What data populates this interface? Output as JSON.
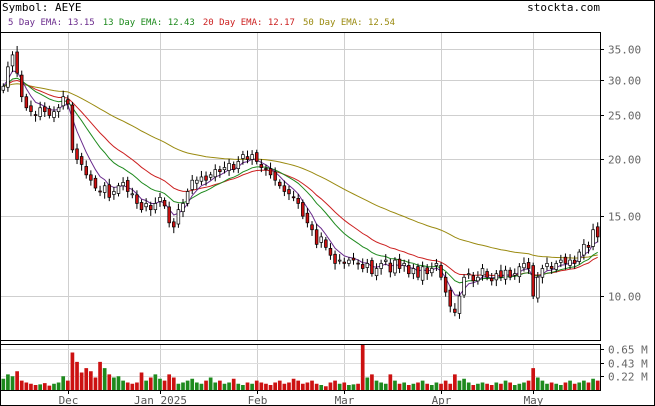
{
  "header": {
    "symbol_label": "Symbol:",
    "symbol": "AEYE",
    "site": "stockta.com"
  },
  "colors": {
    "ema5": "#6a2b8c",
    "ema13": "#1e8a1e",
    "ema20": "#cc2020",
    "ema50": "#9a8a10",
    "up": "#ffffff",
    "down": "#cc1111",
    "vol_up": "#1e8a1e",
    "vol_down": "#cc1111"
  },
  "legend": [
    {
      "label": "5 Day EMA:",
      "value": "13.15",
      "color_key": "ema5"
    },
    {
      "label": "13 Day EMA:",
      "value": "12.43",
      "color_key": "ema13"
    },
    {
      "label": "20 Day EMA:",
      "value": "12.17",
      "color_key": "ema20"
    },
    {
      "label": "50 Day EMA:",
      "value": "12.54",
      "color_key": "ema50"
    }
  ],
  "chart_data": {
    "type": "candlestick",
    "price_scale": "log",
    "ylim": [
      8,
      38
    ],
    "price_ticks": [
      "35.00",
      "30.00",
      "25.00",
      "20.00",
      "15.00",
      "10.00"
    ],
    "price_tick_values": [
      35,
      30,
      25,
      20,
      15,
      10
    ],
    "volume_ticks": [
      "0.65 M",
      "0.43 M",
      "0.22 M"
    ],
    "volume_tick_values": [
      0.65,
      0.43,
      0.22
    ],
    "volume_max": 0.72,
    "x_labels": [
      {
        "label": "Dec",
        "index": 14
      },
      {
        "label": "Jan 2025",
        "index": 34
      },
      {
        "label": "Feb",
        "index": 55
      },
      {
        "label": "Mar",
        "index": 74
      },
      {
        "label": "Apr",
        "index": 95
      },
      {
        "label": "May",
        "index": 115
      }
    ],
    "grid": true,
    "num_bars": 130,
    "close": [
      29.0,
      32.0,
      34.0,
      31.0,
      27.5,
      26.0,
      25.5,
      25.0,
      26.0,
      25.5,
      25.0,
      25.5,
      26.0,
      27.5,
      26.5,
      21.0,
      20.0,
      19.5,
      18.5,
      18.0,
      17.3,
      17.0,
      17.5,
      16.5,
      17.0,
      17.5,
      17.8,
      17.0,
      16.8,
      16.0,
      15.5,
      16.0,
      15.5,
      16.0,
      16.5,
      15.8,
      14.5,
      14.2,
      15.5,
      16.0,
      17.0,
      18.0,
      18.0,
      18.3,
      18.0,
      18.5,
      19.0,
      18.8,
      19.2,
      19.6,
      19.0,
      19.8,
      20.5,
      20.0,
      20.5,
      19.8,
      19.2,
      19.0,
      18.5,
      18.0,
      17.5,
      17.0,
      16.8,
      16.5,
      16.0,
      15.0,
      14.5,
      14.0,
      13.0,
      13.5,
      12.8,
      12.3,
      11.8,
      12.0,
      11.8,
      12.0,
      12.0,
      11.8,
      11.5,
      11.8,
      11.2,
      11.5,
      11.8,
      12.0,
      11.3,
      12.0,
      11.5,
      11.8,
      11.2,
      11.5,
      11.0,
      11.6,
      11.2,
      11.5,
      11.8,
      11.0,
      10.2,
      9.5,
      9.2,
      10.0,
      11.0,
      11.2,
      10.8,
      11.0,
      11.5,
      11.0,
      10.8,
      11.2,
      11.0,
      11.4,
      11.0,
      11.2,
      11.6,
      11.8,
      11.5,
      10.0,
      11.0,
      11.5,
      11.8,
      11.5,
      11.8,
      12.0,
      11.8,
      12.0,
      11.8,
      12.5,
      13.0,
      12.8,
      14.0,
      13.5
    ],
    "volume": [
      0.18,
      0.25,
      0.22,
      0.3,
      0.15,
      0.12,
      0.1,
      0.08,
      0.09,
      0.11,
      0.07,
      0.1,
      0.12,
      0.22,
      0.15,
      0.6,
      0.45,
      0.28,
      0.35,
      0.3,
      0.2,
      0.45,
      0.35,
      0.25,
      0.2,
      0.22,
      0.15,
      0.12,
      0.1,
      0.12,
      0.28,
      0.15,
      0.2,
      0.25,
      0.18,
      0.15,
      0.25,
      0.2,
      0.1,
      0.12,
      0.15,
      0.18,
      0.12,
      0.1,
      0.15,
      0.2,
      0.12,
      0.15,
      0.1,
      0.12,
      0.18,
      0.1,
      0.08,
      0.12,
      0.1,
      0.15,
      0.12,
      0.1,
      0.08,
      0.12,
      0.15,
      0.1,
      0.12,
      0.18,
      0.15,
      0.1,
      0.12,
      0.15,
      0.1,
      0.08,
      0.06,
      0.12,
      0.15,
      0.1,
      0.12,
      0.08,
      0.09,
      0.1,
      0.72,
      0.2,
      0.25,
      0.15,
      0.12,
      0.1,
      0.25,
      0.15,
      0.1,
      0.12,
      0.08,
      0.1,
      0.12,
      0.15,
      0.1,
      0.08,
      0.12,
      0.1,
      0.15,
      0.1,
      0.25,
      0.15,
      0.18,
      0.12,
      0.08,
      0.1,
      0.12,
      0.1,
      0.08,
      0.12,
      0.1,
      0.15,
      0.12,
      0.08,
      0.1,
      0.12,
      0.15,
      0.35,
      0.2,
      0.15,
      0.1,
      0.12,
      0.1,
      0.08,
      0.12,
      0.15,
      0.1,
      0.12,
      0.15,
      0.12,
      0.18,
      0.15
    ],
    "ema_last": {
      "ema5": 13.15,
      "ema13": 12.43,
      "ema20": 12.17,
      "ema50": 12.54
    }
  }
}
